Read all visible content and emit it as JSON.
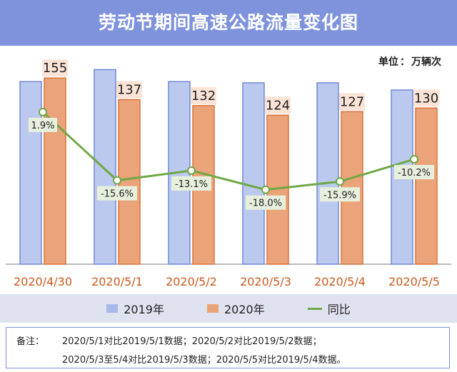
{
  "title": "劳动节期间高速公路流量变化图",
  "unit": {
    "label": "单位",
    "sep": "：",
    "value": "万辆次"
  },
  "colors": {
    "bar2019_fill": "#bcc9ee",
    "bar2019_stroke": "#6f8ad6",
    "bar2020_fill": "#eba37a",
    "bar2020_stroke": "#d9743b",
    "line": "#6fa845",
    "label2020_bg": "#fbe3d6",
    "pct_bg": "#e6f0dc",
    "xtick": "#c85a1e",
    "title_bg": "#7e93dc",
    "legend_bg": "#dfe3ef"
  },
  "chart_data": {
    "type": "bar",
    "categories": [
      "2020/4/30",
      "2020/5/1",
      "2020/5/2",
      "2020/5/3",
      "2020/5/4",
      "2020/5/5"
    ],
    "series": [
      {
        "name": "2019年",
        "type": "bar",
        "values": [
          152,
          162,
          152,
          151,
          151,
          145
        ]
      },
      {
        "name": "2020年",
        "type": "bar",
        "values": [
          155,
          137,
          132,
          124,
          127,
          130
        ],
        "labels": [
          "155",
          "137",
          "132",
          "124",
          "127",
          "130"
        ]
      },
      {
        "name": "同比",
        "type": "line",
        "values": [
          1.9,
          -15.6,
          -13.1,
          -18.0,
          -15.9,
          -10.2
        ],
        "labels": [
          "1.9%",
          "-15.6%",
          "-13.1%",
          "-18.0%",
          "-15.9%",
          "-10.2%"
        ]
      }
    ],
    "ylim": [
      0,
      170
    ],
    "y2lim": [
      -25,
      5
    ],
    "grid": false,
    "legend": "bottom"
  },
  "legend": {
    "items": [
      {
        "label": "2019年",
        "kind": "bar",
        "color": "#a7b9ea"
      },
      {
        "label": "2020年",
        "kind": "bar",
        "color": "#eba37a"
      },
      {
        "label": "同比",
        "kind": "line",
        "color": "#6fa845"
      }
    ]
  },
  "note": {
    "label": "备注：",
    "line1": "2020/5/1对比2019/5/1数据；2020/5/2对比2019/5/2数据；",
    "line2": "2020/5/3至5/4对比2019/5/3数据；2020/5/5对比2019/5/4数据。"
  }
}
